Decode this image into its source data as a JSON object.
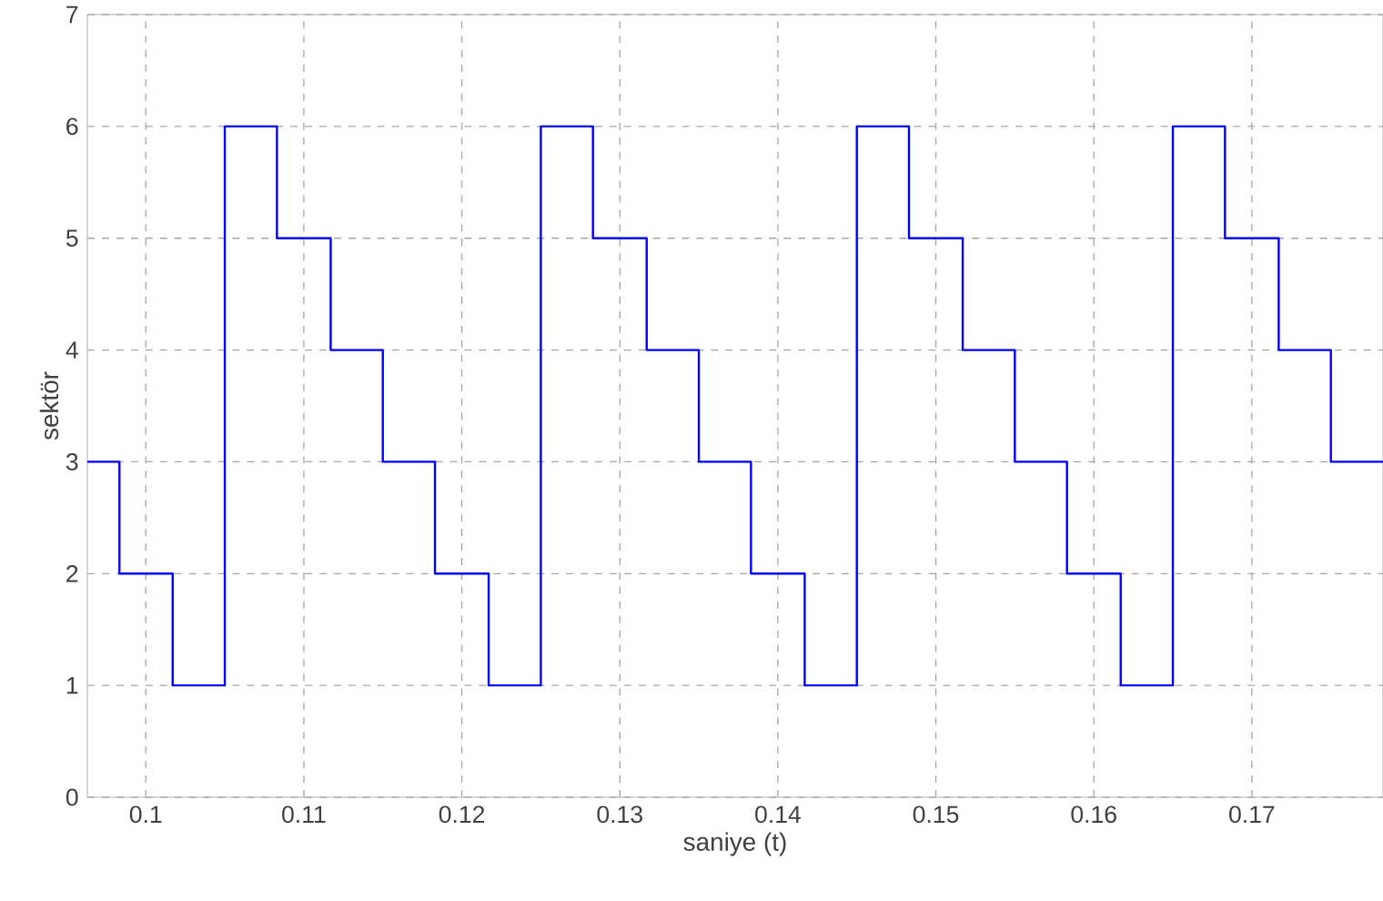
{
  "chart_data": {
    "type": "step",
    "xlabel": "saniye (t)",
    "ylabel": "sektör",
    "x": [
      0.0963,
      0.09833,
      0.1017,
      0.105,
      0.1083,
      0.1117,
      0.115,
      0.1183,
      0.1217,
      0.125,
      0.1283,
      0.1317,
      0.135,
      0.1383,
      0.1417,
      0.145,
      0.1483,
      0.1517,
      0.155,
      0.1583,
      0.1617,
      0.165,
      0.1683,
      0.1717,
      0.175,
      0.1783
    ],
    "series": [
      {
        "color": "#0000ff",
        "values": [
          3,
          2,
          1,
          6,
          5,
          4,
          3,
          2,
          1,
          6,
          5,
          4,
          3,
          2,
          1,
          6,
          5,
          4,
          3,
          2,
          1,
          6,
          5,
          4,
          3,
          3
        ]
      }
    ],
    "xlim": [
      0.0963,
      0.1783
    ],
    "ylim": [
      0,
      7
    ],
    "xticks": [
      0.1,
      0.11,
      0.12,
      0.13,
      0.14,
      0.15,
      0.16,
      0.17
    ],
    "yticks": [
      0,
      1,
      2,
      3,
      4,
      5,
      6,
      7
    ],
    "grid": true,
    "line_style": "solid",
    "marker": "none"
  }
}
